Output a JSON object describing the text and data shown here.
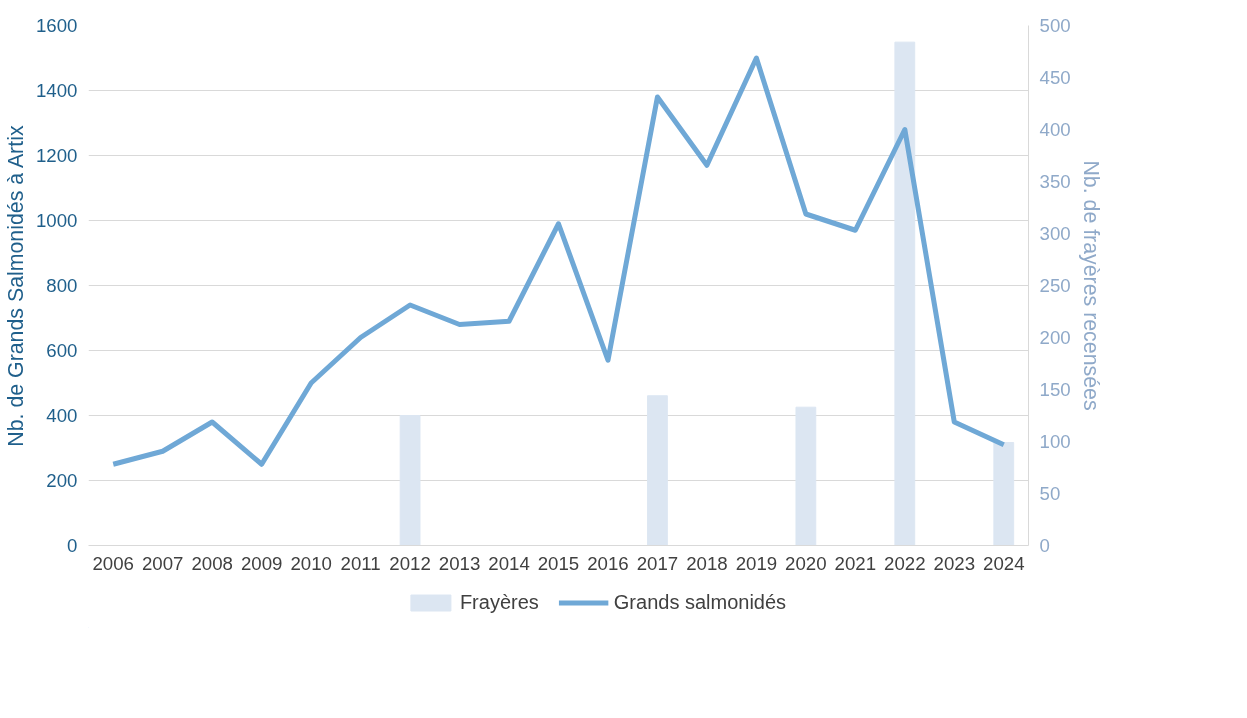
{
  "chart_data": {
    "type": "line",
    "ylabel": "Nb. de Grands Salmonidés à Artix",
    "y2label": "Nb. de frayères recensées",
    "categories": [
      "2006",
      "2007",
      "2008",
      "2009",
      "2010",
      "2011",
      "2012",
      "2013",
      "2014",
      "2015",
      "2016",
      "2017",
      "2018",
      "2019",
      "2020",
      "2021",
      "2022",
      "2023",
      "2024"
    ],
    "series": [
      {
        "name": "Frayères",
        "type": "bar",
        "axis": "y2",
        "color": "#dce6f2",
        "values": [
          null,
          null,
          null,
          null,
          null,
          null,
          125,
          null,
          null,
          null,
          null,
          144,
          null,
          null,
          133,
          null,
          484,
          null,
          99
        ]
      },
      {
        "name": "Grands salmonidés",
        "color": "#6fa8d6",
        "values": [
          250,
          290,
          380,
          250,
          500,
          640,
          740,
          680,
          690,
          990,
          570,
          1380,
          1170,
          1500,
          1020,
          970,
          1280,
          380,
          310
        ]
      }
    ],
    "ylim": [
      0,
      1600
    ],
    "yticks": [
      0,
      200,
      400,
      600,
      800,
      1000,
      1200,
      1400,
      1600
    ],
    "y2lim": [
      0,
      500
    ],
    "y2ticks": [
      0,
      50,
      100,
      150,
      200,
      250,
      300,
      350,
      400,
      450,
      500
    ],
    "grid": "y",
    "legend": "bottom",
    "marker": "none",
    "line_style": "solid"
  }
}
